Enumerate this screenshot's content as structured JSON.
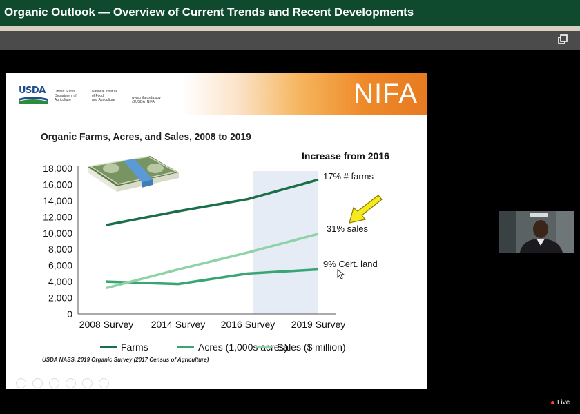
{
  "header": {
    "title": "Organic Outlook — Overview of Current Trends and Recent Developments"
  },
  "window_controls": {
    "minimize_label": "–"
  },
  "slide": {
    "usda_logo": "USDA",
    "usda_lines": "United States\nDepartment of\nAgriculture",
    "nifi_lines": "National Institute\nof Food\nand Agriculture",
    "web_lines": "www.nifa.usda.gov\n@USDA_NIFA",
    "nifa_logo": "NIFA",
    "chart_title": "Organic Farms, Acres, and Sales, 2008 to 2019",
    "increase_title": "Increase from 2016",
    "annotations": {
      "farms": "17% # farms",
      "sales": "31% sales",
      "land": "9% Cert. land"
    },
    "source": "USDA NASS, 2019 Organic Survey (2017 Census of Agriculture)",
    "arrow_color": "#f5ea1c"
  },
  "chart_data": {
    "type": "line",
    "title": "Organic Farms, Acres, and Sales, 2008 to 2019",
    "categories": [
      "2008 Survey",
      "2014 Survey",
      "2016 Survey",
      "2019 Survey"
    ],
    "ylim": [
      0,
      18000
    ],
    "yticks": [
      "0",
      "2,000",
      "4,000",
      "6,000",
      "8,000",
      "10,000",
      "12,000",
      "14,000",
      "16,000",
      "18,000"
    ],
    "highlight_category": "2019 Survey",
    "series": [
      {
        "name": "Farms",
        "color": "#1a6f4a",
        "values": [
          11000,
          12700,
          14200,
          16600
        ]
      },
      {
        "name": "Acres (1,000s acres)",
        "color": "#3aa574",
        "values": [
          4000,
          3700,
          5000,
          5500
        ]
      },
      {
        "name": "Sales ($ million)",
        "color": "#8fd2a8",
        "values": [
          3200,
          5500,
          7600,
          9900
        ]
      }
    ],
    "legend_position": "bottom"
  },
  "status": {
    "live_label": "Live"
  }
}
